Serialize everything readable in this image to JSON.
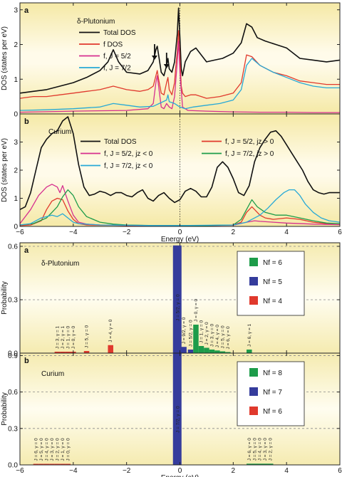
{
  "chart_data": [
    {
      "id": "top-a",
      "type": "line",
      "panel_letter": "a",
      "heading": "δ-Plutonium",
      "xlim": [
        -6,
        6
      ],
      "ylim": [
        0,
        3.2
      ],
      "ylabel": "DOS (states per eV)",
      "yticks": [
        0,
        1,
        2,
        3
      ],
      "series": [
        {
          "name": "Total DOS",
          "color": "#111111",
          "x": [
            -6,
            -5.5,
            -5,
            -4.5,
            -4,
            -3.5,
            -3,
            -2.7,
            -2.5,
            -2.3,
            -2,
            -1.5,
            -1.2,
            -1,
            -0.9,
            -0.85,
            -0.8,
            -0.7,
            -0.6,
            -0.5,
            -0.45,
            -0.4,
            -0.3,
            -0.2,
            -0.15,
            -0.1,
            -0.05,
            0,
            0.05,
            0.1,
            0.2,
            0.4,
            0.6,
            0.8,
            1,
            1.3,
            1.6,
            2,
            2.3,
            2.5,
            2.7,
            2.9,
            3.2,
            3.6,
            4,
            4.5,
            5,
            5.5,
            6
          ],
          "y": [
            0.6,
            0.65,
            0.7,
            0.8,
            0.9,
            1.05,
            1.25,
            1.5,
            1.85,
            1.5,
            1.2,
            1.15,
            1.25,
            1.5,
            1.85,
            1.95,
            1.7,
            1.2,
            1.1,
            1.4,
            1.6,
            1.3,
            1.2,
            1.5,
            1.9,
            2.3,
            3.05,
            2.2,
            1.3,
            1.1,
            1.5,
            1.8,
            1.9,
            1.7,
            1.5,
            1.55,
            1.6,
            1.75,
            2.05,
            2.6,
            2.5,
            2.2,
            2.1,
            2.0,
            1.9,
            1.6,
            1.55,
            1.5,
            1.55
          ]
        },
        {
          "name": "f DOS",
          "color": "#e0392d",
          "x": [
            -6,
            -5.5,
            -5,
            -4.5,
            -4,
            -3.5,
            -3,
            -2.5,
            -2,
            -1.5,
            -1.2,
            -1,
            -0.9,
            -0.85,
            -0.8,
            -0.7,
            -0.6,
            -0.5,
            -0.45,
            -0.4,
            -0.3,
            -0.2,
            -0.15,
            -0.1,
            -0.05,
            0,
            0.05,
            0.1,
            0.2,
            0.4,
            0.6,
            0.8,
            1,
            1.5,
            2,
            2.3,
            2.5,
            2.7,
            3,
            3.5,
            4,
            4.5,
            5,
            5.5,
            6
          ],
          "y": [
            0.45,
            0.5,
            0.5,
            0.55,
            0.6,
            0.65,
            0.7,
            0.8,
            0.7,
            0.65,
            0.7,
            0.8,
            1.1,
            1.25,
            1.0,
            0.6,
            0.55,
            0.9,
            1.05,
            0.7,
            0.55,
            0.9,
            1.4,
            1.8,
            2.4,
            1.6,
            0.8,
            0.6,
            0.5,
            0.55,
            0.55,
            0.5,
            0.45,
            0.5,
            0.6,
            0.9,
            1.7,
            1.65,
            1.4,
            1.2,
            1.1,
            0.95,
            0.9,
            0.85,
            0.85
          ]
        },
        {
          "name": "f, J = 5/2",
          "color": "#d62f8f",
          "x": [
            -6,
            -4,
            -2,
            -1.2,
            -1,
            -0.9,
            -0.85,
            -0.8,
            -0.7,
            -0.6,
            -0.5,
            -0.4,
            -0.3,
            -0.2,
            -0.1,
            -0.05,
            0,
            0.1,
            0.3,
            1,
            2,
            3,
            4,
            5,
            6
          ],
          "y": [
            0.05,
            0.08,
            0.1,
            0.15,
            0.3,
            0.9,
            1.1,
            0.8,
            0.2,
            0.15,
            0.3,
            0.2,
            0.15,
            0.5,
            1.5,
            2.1,
            1.2,
            0.2,
            0.1,
            0.08,
            0.06,
            0.05,
            0.05,
            0.04,
            0.04
          ]
        },
        {
          "name": "f, J = 7/2",
          "color": "#27a9d6",
          "x": [
            -6,
            -5,
            -4,
            -3,
            -2.5,
            -2,
            -1.5,
            -1,
            -0.5,
            -0.45,
            -0.4,
            -0.2,
            0,
            0.2,
            0.5,
            1,
            1.5,
            2,
            2.3,
            2.5,
            2.7,
            3,
            3.5,
            4,
            4.5,
            5,
            5.5,
            6
          ],
          "y": [
            0.1,
            0.12,
            0.15,
            0.2,
            0.3,
            0.25,
            0.2,
            0.22,
            0.4,
            0.55,
            0.35,
            0.3,
            0.2,
            0.15,
            0.2,
            0.25,
            0.3,
            0.4,
            0.7,
            1.4,
            1.6,
            1.4,
            1.2,
            1.05,
            0.9,
            0.8,
            0.75,
            0.75
          ]
        }
      ],
      "arrows_at_x": [
        -0.95,
        -0.5
      ]
    },
    {
      "id": "top-b",
      "type": "line",
      "panel_letter": "b",
      "heading": "Curium",
      "xlim": [
        -6,
        6
      ],
      "xlabel": "Energy (eV)",
      "xticks": [
        -6,
        -4,
        -2,
        0,
        2,
        4,
        6
      ],
      "ylim": [
        0,
        4
      ],
      "ylabel": "DOS (states per eV)",
      "yticks": [
        0,
        1,
        2,
        3
      ],
      "series": [
        {
          "name": "Total DOS",
          "color": "#111111",
          "x": [
            -6,
            -5.8,
            -5.6,
            -5.4,
            -5.2,
            -5,
            -4.8,
            -4.6,
            -4.4,
            -4.2,
            -4,
            -3.8,
            -3.6,
            -3.4,
            -3.2,
            -3,
            -2.8,
            -2.6,
            -2.4,
            -2.2,
            -2,
            -1.8,
            -1.6,
            -1.4,
            -1.2,
            -1,
            -0.8,
            -0.6,
            -0.4,
            -0.2,
            0,
            0.2,
            0.4,
            0.6,
            0.8,
            1,
            1.2,
            1.4,
            1.6,
            1.8,
            2,
            2.2,
            2.4,
            2.6,
            2.8,
            3,
            3.2,
            3.4,
            3.6,
            3.8,
            4,
            4.2,
            4.4,
            4.6,
            4.8,
            5,
            5.2,
            5.4,
            5.6,
            5.8,
            6
          ],
          "y": [
            0.6,
            0.7,
            1.2,
            2.0,
            2.8,
            3.1,
            3.3,
            3.4,
            3.75,
            3.9,
            3.3,
            2.2,
            1.4,
            1.1,
            1.15,
            1.25,
            1.2,
            1.1,
            1.2,
            1.2,
            1.1,
            1.05,
            1.2,
            1.3,
            1.0,
            0.9,
            1.1,
            1.2,
            1.0,
            0.85,
            0.95,
            1.25,
            1.35,
            1.25,
            1.05,
            1.05,
            1.4,
            2.1,
            2.3,
            2.1,
            1.7,
            1.2,
            1.1,
            1.45,
            2.3,
            2.8,
            3.1,
            3.35,
            3.4,
            3.2,
            2.9,
            2.6,
            2.3,
            2.0,
            1.6,
            1.3,
            1.2,
            1.15,
            1.2,
            1.2,
            1.2
          ]
        },
        {
          "name": "f, J = 5/2, jz > 0",
          "color": "#e0392d",
          "x": [
            -6,
            -5.6,
            -5.2,
            -5,
            -4.8,
            -4.6,
            -4.4,
            -4.2,
            -4,
            -3.8,
            -3.5,
            -3,
            -2.5,
            -2,
            -1,
            0,
            1,
            2,
            2.3,
            2.5,
            2.7,
            2.8,
            3,
            3.2,
            3.5,
            4,
            4.5,
            5,
            5.5,
            6
          ],
          "y": [
            0.03,
            0.05,
            0.2,
            0.6,
            0.9,
            1.0,
            0.95,
            0.55,
            0.25,
            0.1,
            0.05,
            0.04,
            0.04,
            0.03,
            0.03,
            0.03,
            0.03,
            0.05,
            0.15,
            0.5,
            0.7,
            0.6,
            0.4,
            0.3,
            0.25,
            0.3,
            0.25,
            0.15,
            0.1,
            0.1
          ]
        },
        {
          "name": "f, J = 5/2, jz < 0",
          "color": "#d62f8f",
          "x": [
            -6,
            -5.6,
            -5.3,
            -5,
            -4.8,
            -4.6,
            -4.5,
            -4.4,
            -4.2,
            -4,
            -3.8,
            -3.5,
            -3,
            -2,
            -1,
            0,
            1,
            2,
            2.5,
            2.8,
            3,
            3.5,
            4,
            5,
            6
          ],
          "y": [
            0.1,
            0.6,
            1.1,
            1.4,
            1.5,
            1.4,
            1.2,
            1.45,
            0.9,
            0.4,
            0.15,
            0.08,
            0.05,
            0.04,
            0.03,
            0.03,
            0.03,
            0.04,
            0.15,
            0.2,
            0.18,
            0.15,
            0.12,
            0.08,
            0.06
          ]
        },
        {
          "name": "f, J = 7/2, jz > 0",
          "color": "#1d9c4a",
          "x": [
            -6,
            -5.5,
            -5,
            -4.8,
            -4.6,
            -4.4,
            -4.2,
            -4,
            -3.8,
            -3.5,
            -3,
            -2.5,
            -2,
            -1,
            0,
            1,
            2,
            2.3,
            2.5,
            2.7,
            2.9,
            3.2,
            3.6,
            4,
            4.5,
            5,
            5.5,
            6
          ],
          "y": [
            0.05,
            0.1,
            0.3,
            0.5,
            0.7,
            1.05,
            1.3,
            1.1,
            0.7,
            0.35,
            0.15,
            0.08,
            0.05,
            0.03,
            0.03,
            0.03,
            0.05,
            0.25,
            0.6,
            0.95,
            0.7,
            0.5,
            0.4,
            0.4,
            0.3,
            0.2,
            0.12,
            0.1
          ]
        },
        {
          "name": "f, J = 7/2, jz < 0",
          "color": "#27a9d6",
          "x": [
            -6,
            -5.6,
            -5.2,
            -5,
            -4.8,
            -4.6,
            -4.4,
            -4.2,
            -4,
            -3.8,
            -3.5,
            -3,
            -2,
            -1,
            0,
            1,
            2,
            2.5,
            3,
            3.3,
            3.6,
            3.9,
            4.1,
            4.3,
            4.5,
            4.7,
            5,
            5.3,
            5.6,
            6
          ],
          "y": [
            0.05,
            0.1,
            0.3,
            0.35,
            0.4,
            0.35,
            0.45,
            0.3,
            0.15,
            0.1,
            0.08,
            0.05,
            0.04,
            0.03,
            0.03,
            0.04,
            0.05,
            0.15,
            0.4,
            0.65,
            0.95,
            1.2,
            1.3,
            1.3,
            1.1,
            0.8,
            0.5,
            0.3,
            0.2,
            0.15
          ]
        }
      ]
    },
    {
      "id": "bottom-a",
      "type": "bar",
      "panel_letter": "a",
      "heading": "δ-Plutonium",
      "xlim": [
        -6,
        6
      ],
      "ylim": [
        0,
        0.62
      ],
      "ylabel": "Probability",
      "yticks": [
        0.0,
        0.3,
        0.6
      ],
      "ytick_labels": [
        "0.0",
        "0.3",
        "0.6"
      ],
      "legend": [
        {
          "label": "Nf = 6",
          "color": "#1d9c4a"
        },
        {
          "label": "Nf = 5",
          "color": "#353c9c"
        },
        {
          "label": "Nf = 4",
          "color": "#e0392d"
        }
      ],
      "bars": [
        {
          "x": -4.6,
          "value": 0.008,
          "color": "#e0392d",
          "label": "J = 3, γ = 1"
        },
        {
          "x": -4.4,
          "value": 0.008,
          "color": "#e0392d",
          "label": "J = 2, γ = 1"
        },
        {
          "x": -4.2,
          "value": 0.008,
          "color": "#e0392d",
          "label": "J = 1, γ = 0"
        },
        {
          "x": -4.0,
          "value": 0.008,
          "color": "#e0392d",
          "label": "J = 0, γ = 0"
        },
        {
          "x": -3.5,
          "value": 0.012,
          "color": "#e0392d",
          "label": "J = 5, γ = 0"
        },
        {
          "x": -2.6,
          "value": 0.045,
          "color": "#e0392d",
          "label": "J = 4, γ = 0"
        },
        {
          "x": -0.1,
          "value": 0.605,
          "color": "#353c9c",
          "label": "J = 5/2, γ = 0"
        },
        {
          "x": 0.15,
          "value": 0.035,
          "color": "#353c9c",
          "label": "J = 9/2, γ = 0"
        },
        {
          "x": 0.4,
          "value": 0.02,
          "color": "#353c9c",
          "label": "J = 5/2, γ = 0"
        },
        {
          "x": 0.6,
          "value": 0.16,
          "color": "#1d9c4a",
          "label": "J = 0, γ = 0"
        },
        {
          "x": 0.8,
          "value": 0.04,
          "color": "#1d9c4a",
          "label": "J = 1, γ = 0"
        },
        {
          "x": 1.0,
          "value": 0.03,
          "color": "#1d9c4a",
          "label": "J = 2, γ = 0"
        },
        {
          "x": 1.2,
          "value": 0.02,
          "color": "#1d9c4a",
          "label": "J = 3, γ = 0"
        },
        {
          "x": 1.4,
          "value": 0.015,
          "color": "#1d9c4a",
          "label": "J = 4, γ = 0"
        },
        {
          "x": 1.6,
          "value": 0.01,
          "color": "#1d9c4a",
          "label": "J = 5, γ = 0"
        },
        {
          "x": 1.8,
          "value": 0.006,
          "color": "#1d9c4a",
          "label": "J = 6, γ = 0"
        },
        {
          "x": 2.6,
          "value": 0.02,
          "color": "#1d9c4a",
          "label": "J = 6, γ = 1"
        }
      ]
    },
    {
      "id": "bottom-b",
      "type": "bar",
      "panel_letter": "b",
      "heading": "Curium",
      "xlim": [
        -6,
        6
      ],
      "xlabel": "Energy (eV)",
      "xticks": [
        -6,
        -4,
        -2,
        0,
        2,
        4,
        6
      ],
      "ylim": [
        0,
        0.92
      ],
      "ylabel": "Probability",
      "yticks": [
        0.0,
        0.3,
        0.6,
        0.9
      ],
      "ytick_labels": [
        "0.0",
        "0.3",
        "0.6",
        "0.9"
      ],
      "legend": [
        {
          "label": "Nf = 8",
          "color": "#1d9c4a"
        },
        {
          "label": "Nf = 7",
          "color": "#353c9c"
        },
        {
          "label": "Nf = 6",
          "color": "#e0392d"
        }
      ],
      "bars": [
        {
          "x": -5.4,
          "value": 0.008,
          "color": "#e0392d",
          "label": "J = 6, γ = 0"
        },
        {
          "x": -5.2,
          "value": 0.008,
          "color": "#e0392d",
          "label": "J = 5, γ = 0"
        },
        {
          "x": -5.0,
          "value": 0.008,
          "color": "#e0392d",
          "label": "J = 4, γ = 0"
        },
        {
          "x": -4.8,
          "value": 0.008,
          "color": "#e0392d",
          "label": "J = 3, γ = 0"
        },
        {
          "x": -4.6,
          "value": 0.008,
          "color": "#e0392d",
          "label": "J = 2, γ = 0"
        },
        {
          "x": -4.4,
          "value": 0.008,
          "color": "#e0392d",
          "label": "J = 1, γ = 0"
        },
        {
          "x": -4.2,
          "value": 0.008,
          "color": "#e0392d",
          "label": "J = 0, γ = 0"
        },
        {
          "x": -0.1,
          "value": 0.92,
          "color": "#353c9c",
          "label": "J = 7/2, γ = 0"
        },
        {
          "x": 2.6,
          "value": 0.01,
          "color": "#1d9c4a",
          "label": "J = 6, γ = 0"
        },
        {
          "x": 2.8,
          "value": 0.01,
          "color": "#1d9c4a",
          "label": "J = 5, γ = 0"
        },
        {
          "x": 3.0,
          "value": 0.01,
          "color": "#1d9c4a",
          "label": "J = 4, γ = 0"
        },
        {
          "x": 3.2,
          "value": 0.01,
          "color": "#1d9c4a",
          "label": "J = 3, γ = 0"
        },
        {
          "x": 3.4,
          "value": 0.01,
          "color": "#1d9c4a",
          "label": "J = 2, γ = 0"
        }
      ]
    }
  ]
}
